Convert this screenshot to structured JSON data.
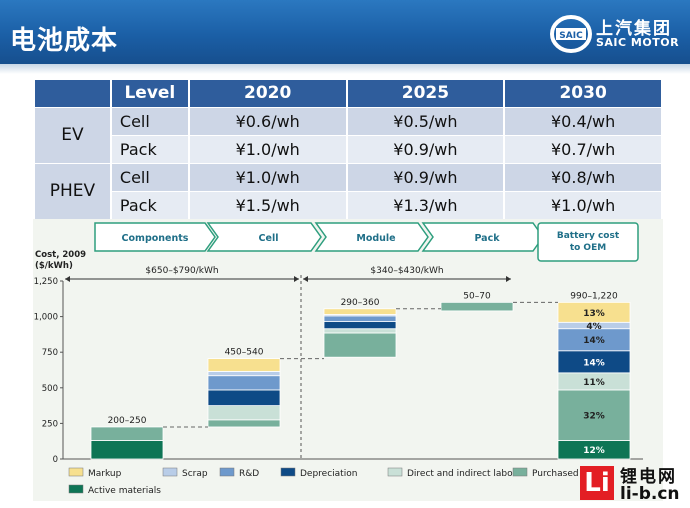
{
  "header": {
    "title": "电池成本",
    "logo_cn": "上汽集团",
    "logo_en": "SAIC MOTOR",
    "logo_badge": "SAIC"
  },
  "table": {
    "columns": [
      "",
      "Level",
      "2020",
      "2025",
      "2030"
    ],
    "rows": [
      {
        "vehicle": "EV",
        "level": "Cell",
        "values": [
          "¥0.6/wh",
          "¥0.5/wh",
          "¥0.4/wh"
        ]
      },
      {
        "vehicle": "",
        "level": "Pack",
        "values": [
          "¥1.0/wh",
          "¥0.9/wh",
          "¥0.7/wh"
        ]
      },
      {
        "vehicle": "PHEV",
        "level": "Cell",
        "values": [
          "¥1.0/wh",
          "¥0.9/wh",
          "¥0.8/wh"
        ]
      },
      {
        "vehicle": "",
        "level": "Pack",
        "values": [
          "¥1.5/wh",
          "¥1.3/wh",
          "¥1.0/wh"
        ]
      }
    ]
  },
  "chart_data": {
    "type": "bar",
    "stages": [
      "Components",
      "Cell",
      "Module",
      "Pack",
      "Battery cost to OEM"
    ],
    "ylabel": "Cost, 2009 ($/kWh)",
    "ylim": [
      0,
      1250
    ],
    "yticks": [
      "0",
      "250",
      "500",
      "750",
      "1,000",
      "1,250"
    ],
    "ranges": [
      {
        "label": "$650–$790/kWh"
      },
      {
        "label": "$340–$430/kWh"
      }
    ],
    "bars": [
      {
        "label": "200–250",
        "base": 0,
        "segments": [
          {
            "component": "Active materials",
            "value": 130
          },
          {
            "component": "Purchased parts",
            "value": 95
          }
        ]
      },
      {
        "label": "450–540",
        "base": 225,
        "segments": [
          {
            "component": "Purchased parts",
            "value": 50
          },
          {
            "component": "Direct and indirect labor",
            "value": 100
          },
          {
            "component": "Depreciation",
            "value": 110
          },
          {
            "component": "R&D",
            "value": 100
          },
          {
            "component": "Scrap",
            "value": 30
          },
          {
            "component": "Markup",
            "value": 90
          }
        ]
      },
      {
        "label": "290–360",
        "base": 715,
        "segments": [
          {
            "component": "Purchased parts",
            "value": 170
          },
          {
            "component": "Direct and indirect labor",
            "value": 30
          },
          {
            "component": "Depreciation",
            "value": 50
          },
          {
            "component": "R&D",
            "value": 40
          },
          {
            "component": "Scrap",
            "value": 10
          },
          {
            "component": "Markup",
            "value": 40
          }
        ]
      },
      {
        "label": "50–70",
        "base": 1040,
        "segments": [
          {
            "component": "Purchased parts",
            "value": 60
          }
        ]
      },
      {
        "label": "990–1,220",
        "base": 0,
        "segments": [
          {
            "component": "Active materials",
            "value": 130,
            "pct": "12%"
          },
          {
            "component": "Purchased parts",
            "value": 355,
            "pct": "32%"
          },
          {
            "component": "Direct and indirect labor",
            "value": 120,
            "pct": "11%"
          },
          {
            "component": "Depreciation",
            "value": 155,
            "pct": "14%"
          },
          {
            "component": "R&D",
            "value": 155,
            "pct": "14%"
          },
          {
            "component": "Scrap",
            "value": 45,
            "pct": "4%"
          },
          {
            "component": "Markup",
            "value": 140,
            "pct": "13%"
          }
        ]
      }
    ],
    "legend": [
      {
        "name": "Markup",
        "color": "#f7e08f"
      },
      {
        "name": "Scrap",
        "color": "#b9cde8"
      },
      {
        "name": "R&D",
        "color": "#6e99cc"
      },
      {
        "name": "Depreciation",
        "color": "#0e4a86"
      },
      {
        "name": "Direct and indirect labor",
        "color": "#c9e0d7"
      },
      {
        "name": "Purchased parts",
        "color": "#78b09c"
      },
      {
        "name": "Active materials",
        "color": "#0e7555"
      }
    ],
    "legend_position": "bottom"
  },
  "watermark": {
    "badge": "Li",
    "cn": "锂电网",
    "en": "li-b.cn"
  }
}
